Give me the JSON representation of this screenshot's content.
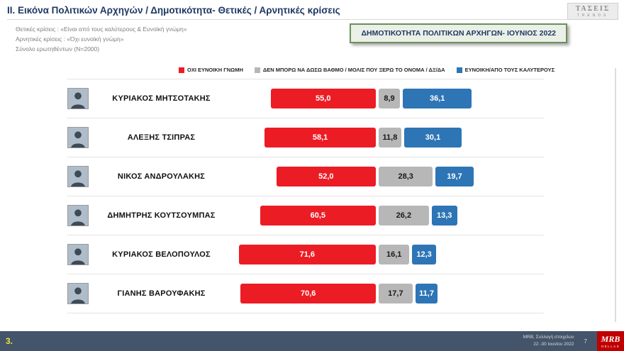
{
  "header": {
    "title": "II. Εικόνα Πολιτικών Αρχηγών  / Δημοτικότητα- Θετικές / Αρνητικές κρίσεις",
    "subtitles": [
      "Θετικές κρίσεις : «Είναι από τους καλύτερους &  Ευνοϊκή γνώμη»",
      "Αρνητικές κρίσεις : «Όχι ευνοϊκή γνώμη»",
      "Σύνολο ερωτηθέντων (N=2000)"
    ],
    "badge": "ΔΗΜΟΤΙΚΟΤΗΤΑ ΠΟΛΙΤΙΚΩΝ ΑΡΧΗΓΩΝ- ΙΟΥΝΙΟΣ 2022",
    "logo": {
      "line1": "ΤΑΣΕΙΣ",
      "line2": "TRENDS"
    }
  },
  "legend": {
    "items": [
      {
        "label": "ΟΧΙ ΕΥΝΟΙΚΗ ΓΝΩΜΗ",
        "color": "#ec1c24"
      },
      {
        "label": "ΔΕΝ ΜΠΟΡΩ ΝΑ ΔΩΣΩ ΒΑΘΜΟ / ΜΟΛΙΣ ΠΟΥ ΞΕΡΩ ΤΟ ΟΝΟΜΑ / ΔΞ/ΔΑ",
        "color": "#b7b7b7"
      },
      {
        "label": "ΕΥΝΟΙΚΗ/ΑΠΟ ΤΟΥΣ ΚΑΛΥΤΕΡΟΥΣ",
        "color": "#2e75b6"
      }
    ]
  },
  "chart_data": {
    "type": "bar",
    "orientation": "horizontal_stacked",
    "unit": "percent",
    "title": "ΔΗΜΟΤΙΚΟΤΗΤΑ ΠΟΛΙΤΙΚΩΝ ΑΡΧΗΓΩΝ- ΙΟΥΝΙΟΣ 2022",
    "categories": [
      "ΚΥΡΙΑΚΟΣ ΜΗΤΣΟΤΑΚΗΣ",
      "ΑΛΕΞΗΣ ΤΣΙΠΡΑΣ",
      "ΝΙΚΟΣ ΑΝΔΡΟΥΛΑΚΗΣ",
      "ΔΗΜΗΤΡΗΣ ΚΟΥΤΣΟΥΜΠΑΣ",
      "ΚΥΡΙΑΚΟΣ ΒΕΛΟΠΟΥΛΟΣ",
      "ΓΙΑΝΗΣ ΒΑΡΟΥΦΑΚΗΣ"
    ],
    "series": [
      {
        "name": "ΟΧΙ ΕΥΝΟΙΚΗ ΓΝΩΜΗ",
        "color": "#ec1c24",
        "values": [
          55.0,
          58.1,
          52.0,
          60.5,
          71.6,
          70.6
        ],
        "labels": [
          "55,0",
          "58,1",
          "52,0",
          "60,5",
          "71,6",
          "70,6"
        ]
      },
      {
        "name": "ΔΕΝ ΜΠΟΡΩ ΝΑ ΔΩΣΩ ΒΑΘΜΟ / ΜΟΛΙΣ ΠΟΥ ΞΕΡΩ ΤΟ ΟΝΟΜΑ / ΔΞ/ΔΑ",
        "color": "#b7b7b7",
        "values": [
          8.9,
          11.8,
          28.3,
          26.2,
          16.1,
          17.7
        ],
        "labels": [
          "8,9",
          "11,8",
          "28,3",
          "26,2",
          "16,1",
          "17,7"
        ]
      },
      {
        "name": "ΕΥΝΟΙΚΗ/ΑΠΟ ΤΟΥΣ ΚΑΛΥΤΕΡΟΥΣ",
        "color": "#2e75b6",
        "values": [
          36.1,
          30.1,
          19.7,
          13.3,
          12.3,
          11.7
        ],
        "labels": [
          "36,1",
          "30,1",
          "19,7",
          "13,3",
          "12,3",
          "11,7"
        ]
      }
    ],
    "xlim": [
      0,
      100
    ]
  },
  "footer": {
    "slide_number": "3.",
    "source_line1": "MRB, Συλλογή στοιχείων",
    "source_line2": "22 -30 Ιουνίου 2022",
    "page": "7",
    "logo_text": "MRB",
    "logo_subtext": "HELLAS"
  }
}
